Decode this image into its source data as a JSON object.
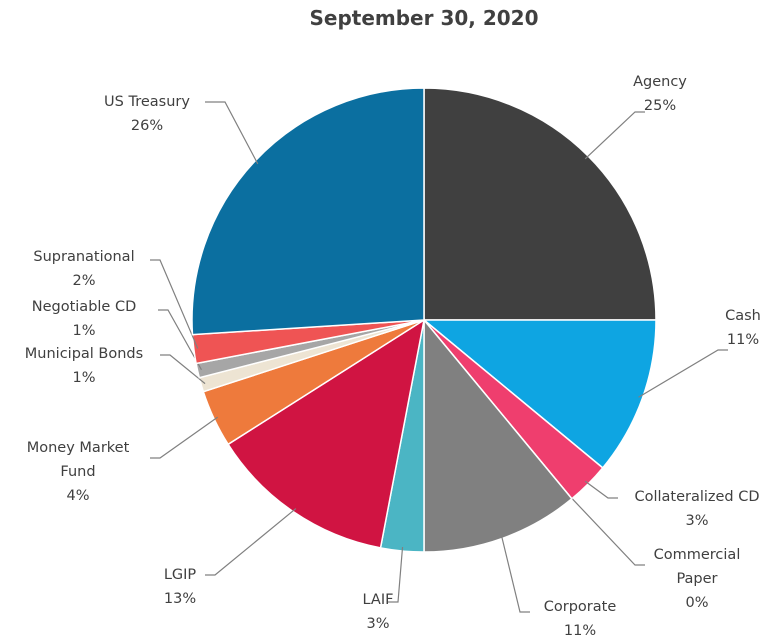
{
  "chart_data": {
    "type": "pie",
    "title": "September 30, 2020",
    "categories": [
      "Agency",
      "Cash",
      "Collateralized CD",
      "Commercial Paper",
      "Corporate",
      "LAIF",
      "LGIP",
      "Money Market Fund",
      "Municipal Bonds",
      "Negotiable CD",
      "Supranational",
      "US Treasury"
    ],
    "values": [
      25,
      11,
      3,
      0,
      11,
      3,
      13,
      4,
      1,
      1,
      2,
      26
    ],
    "value_labels": [
      "25%",
      "11%",
      "3%",
      "0%",
      "11%",
      "3%",
      "13%",
      "4%",
      "1%",
      "1%",
      "2%",
      "26%"
    ],
    "colors": [
      "#404040",
      "#0ea5e2",
      "#ef3e6e",
      "#bfbfbf",
      "#808080",
      "#4bb5c4",
      "#d01442",
      "#ee7a3c",
      "#ede4d3",
      "#a6a6a6",
      "#ef5454",
      "#0b6fa0"
    ]
  }
}
